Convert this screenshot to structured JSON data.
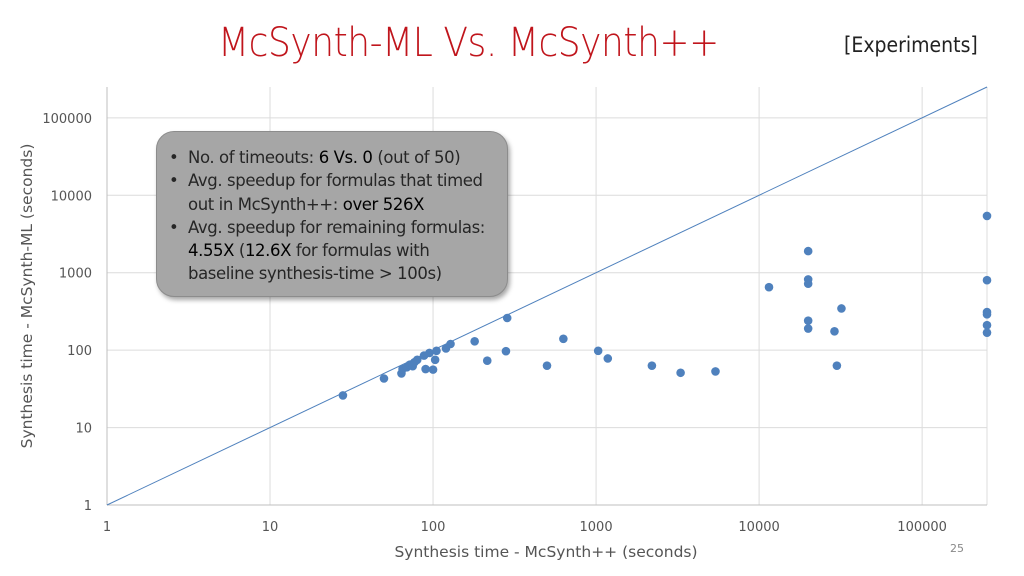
{
  "slide": {
    "title": "McSynth-ML Vs. McSynth++",
    "tag": "[Experiments]",
    "page_number": "25"
  },
  "callout": {
    "items": [
      {
        "parts": [
          {
            "text": "No. of timeouts: "
          },
          {
            "text": "6 Vs. 0",
            "highlight": true
          },
          {
            "text": " (out of 50)"
          }
        ]
      },
      {
        "parts": [
          {
            "text": "Avg. speedup for formulas that timed out in McSynth++: "
          },
          {
            "text": "over 526X",
            "highlight": true
          }
        ]
      },
      {
        "parts": [
          {
            "text": "Avg. speedup for remaining formulas: "
          },
          {
            "text": "4.55X",
            "highlight": true
          },
          {
            "text": " ("
          },
          {
            "text": "12.6X",
            "highlight": true
          },
          {
            "text": " for formulas with baseline synthesis-time > 100s)"
          }
        ]
      }
    ]
  },
  "chart_data": {
    "type": "scatter",
    "title": "",
    "xlabel": "Synthesis time - McSynth++ (seconds)",
    "ylabel": "Synthesis time - McSynth-ML (seconds)",
    "x_scale": "log",
    "y_scale": "log",
    "xlim": [
      1,
      250000
    ],
    "ylim": [
      1,
      250000
    ],
    "x_ticks": [
      "1",
      "10",
      "100",
      "1000",
      "10000",
      "100000"
    ],
    "y_ticks": [
      "1",
      "10",
      "100",
      "1000",
      "10000",
      "100000"
    ],
    "grid": true,
    "reference_line": "y = x",
    "point_color": "#4f81bd",
    "line_color": "#4f81bd",
    "points": [
      [
        28,
        26
      ],
      [
        50,
        43
      ],
      [
        64,
        50
      ],
      [
        65,
        57
      ],
      [
        69,
        60
      ],
      [
        72,
        65
      ],
      [
        75,
        62
      ],
      [
        77,
        70
      ],
      [
        80,
        75
      ],
      [
        88,
        85
      ],
      [
        90,
        57
      ],
      [
        95,
        92
      ],
      [
        100,
        56
      ],
      [
        103,
        75
      ],
      [
        105,
        98
      ],
      [
        120,
        105
      ],
      [
        128,
        120
      ],
      [
        180,
        130
      ],
      [
        215,
        73
      ],
      [
        280,
        97
      ],
      [
        285,
        260
      ],
      [
        500,
        63
      ],
      [
        630,
        140
      ],
      [
        1030,
        98
      ],
      [
        1180,
        78
      ],
      [
        2200,
        63
      ],
      [
        3300,
        51
      ],
      [
        5400,
        53
      ],
      [
        11500,
        650
      ],
      [
        20000,
        1900
      ],
      [
        20000,
        820
      ],
      [
        20000,
        720
      ],
      [
        20000,
        240
      ],
      [
        20000,
        190
      ],
      [
        29000,
        175
      ],
      [
        30000,
        63
      ],
      [
        32000,
        345
      ],
      [
        250000,
        5400
      ],
      [
        250000,
        800
      ],
      [
        250000,
        310
      ],
      [
        250000,
        290
      ],
      [
        250000,
        210
      ],
      [
        250000,
        168
      ]
    ]
  }
}
